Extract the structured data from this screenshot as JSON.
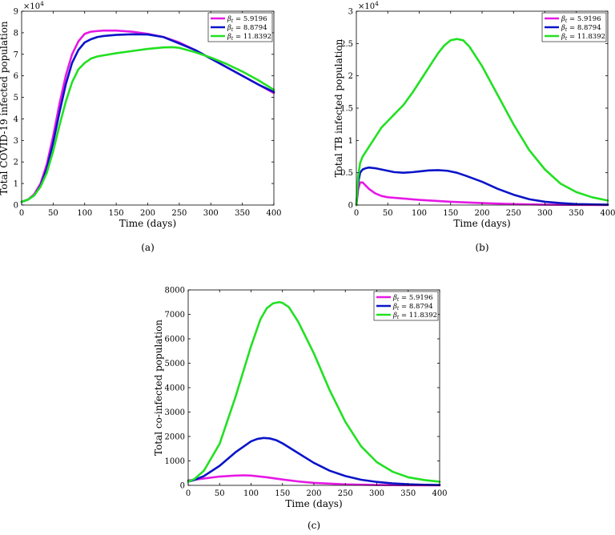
{
  "chart_data": [
    {
      "type": "line",
      "caption": "(a)",
      "xlabel": "Time (days)",
      "ylabel": "Total COVID-19 infected population",
      "exponent": "×10",
      "exponent_power": "4",
      "xlim": [
        0,
        400
      ],
      "ylim": [
        0,
        9
      ],
      "xticks": [
        0,
        50,
        100,
        150,
        200,
        250,
        300,
        350,
        400
      ],
      "yticks": [
        0,
        1,
        2,
        3,
        4,
        5,
        6,
        7,
        8,
        9
      ],
      "legend_position": "top-right",
      "series": [
        {
          "name": "β_t = 5.9196",
          "sym": "β",
          "sub": "t",
          "val": " = 5.9196",
          "color": "#e619e6",
          "x": [
            0,
            10,
            20,
            30,
            40,
            50,
            60,
            70,
            80,
            90,
            100,
            110,
            120,
            130,
            150,
            175,
            200,
            225,
            250,
            275,
            300,
            325,
            350,
            375,
            400
          ],
          "y": [
            0.15,
            0.25,
            0.5,
            1.0,
            1.9,
            3.2,
            4.7,
            6.0,
            7.0,
            7.6,
            7.95,
            8.05,
            8.08,
            8.1,
            8.1,
            8.05,
            7.95,
            7.8,
            7.55,
            7.2,
            6.8,
            6.4,
            6.0,
            5.6,
            5.2
          ]
        },
        {
          "name": "β_t = 8.8794",
          "sym": "β",
          "sub": "t",
          "val": " = 8.8794",
          "color": "#0a14c8",
          "x": [
            0,
            10,
            20,
            30,
            40,
            50,
            60,
            70,
            80,
            90,
            100,
            110,
            120,
            130,
            150,
            175,
            200,
            225,
            250,
            275,
            300,
            325,
            350,
            375,
            400
          ],
          "y": [
            0.15,
            0.25,
            0.45,
            0.9,
            1.7,
            2.9,
            4.3,
            5.6,
            6.6,
            7.2,
            7.55,
            7.7,
            7.8,
            7.85,
            7.9,
            7.93,
            7.92,
            7.8,
            7.5,
            7.2,
            6.8,
            6.4,
            6.0,
            5.6,
            5.25
          ]
        },
        {
          "name": "β_t = 11.8392",
          "sym": "β",
          "sub": "t",
          "val": " = 11.8392",
          "color": "#22e022",
          "x": [
            0,
            10,
            20,
            30,
            40,
            50,
            60,
            70,
            80,
            90,
            100,
            110,
            120,
            130,
            150,
            175,
            200,
            225,
            240,
            250,
            275,
            300,
            325,
            350,
            375,
            400
          ],
          "y": [
            0.15,
            0.25,
            0.45,
            0.85,
            1.5,
            2.5,
            3.7,
            4.8,
            5.7,
            6.3,
            6.6,
            6.8,
            6.9,
            6.95,
            7.05,
            7.15,
            7.25,
            7.32,
            7.33,
            7.3,
            7.1,
            6.85,
            6.55,
            6.2,
            5.8,
            5.35
          ]
        }
      ]
    },
    {
      "type": "line",
      "caption": "(b)",
      "xlabel": "Time (days)",
      "ylabel": "Total TB infected population",
      "exponent": "×10",
      "exponent_power": "4",
      "xlim": [
        0,
        400
      ],
      "ylim": [
        0,
        3
      ],
      "xticks": [
        0,
        50,
        100,
        150,
        200,
        250,
        300,
        350,
        400
      ],
      "yticks": [
        0,
        0.5,
        1,
        1.5,
        2,
        2.5,
        3
      ],
      "legend_position": "top-right",
      "series": [
        {
          "name": "β_t = 5.9196",
          "sym": "β",
          "sub": "t",
          "val": " = 5.9196",
          "color": "#e619e6",
          "x": [
            0,
            3,
            6,
            10,
            15,
            20,
            30,
            40,
            50,
            75,
            100,
            150,
            200,
            250,
            300,
            350,
            400
          ],
          "y": [
            0,
            0.25,
            0.35,
            0.35,
            0.3,
            0.25,
            0.18,
            0.14,
            0.12,
            0.1,
            0.08,
            0.05,
            0.03,
            0.015,
            0.005,
            0.002,
            0
          ]
        },
        {
          "name": "β_t = 8.8794",
          "sym": "β",
          "sub": "t",
          "val": " = 8.8794",
          "color": "#0a14c8",
          "x": [
            0,
            3,
            6,
            10,
            15,
            20,
            30,
            40,
            50,
            60,
            75,
            90,
            100,
            115,
            130,
            145,
            160,
            175,
            200,
            225,
            250,
            275,
            300,
            325,
            350,
            375,
            400
          ],
          "y": [
            0,
            0.35,
            0.5,
            0.55,
            0.57,
            0.58,
            0.57,
            0.55,
            0.53,
            0.51,
            0.5,
            0.51,
            0.52,
            0.535,
            0.54,
            0.53,
            0.5,
            0.45,
            0.36,
            0.25,
            0.16,
            0.09,
            0.05,
            0.03,
            0.015,
            0.01,
            0.005
          ]
        },
        {
          "name": "β_t = 11.8392",
          "sym": "β",
          "sub": "t",
          "val": " = 11.8392",
          "color": "#22e022",
          "x": [
            0,
            3,
            6,
            10,
            20,
            30,
            40,
            50,
            60,
            75,
            90,
            100,
            110,
            120,
            130,
            140,
            150,
            160,
            170,
            180,
            200,
            225,
            250,
            275,
            300,
            325,
            350,
            375,
            400
          ],
          "y": [
            0,
            0.45,
            0.65,
            0.75,
            0.9,
            1.05,
            1.2,
            1.3,
            1.4,
            1.55,
            1.75,
            1.9,
            2.05,
            2.2,
            2.35,
            2.47,
            2.55,
            2.57,
            2.55,
            2.45,
            2.15,
            1.7,
            1.25,
            0.85,
            0.55,
            0.33,
            0.2,
            0.12,
            0.07
          ]
        }
      ]
    },
    {
      "type": "line",
      "caption": "(c)",
      "xlabel": "Time (days)",
      "ylabel": "Total co-infected population",
      "xlim": [
        0,
        400
      ],
      "ylim": [
        0,
        8000
      ],
      "xticks": [
        0,
        50,
        100,
        150,
        200,
        250,
        300,
        350,
        400
      ],
      "yticks": [
        0,
        1000,
        2000,
        3000,
        4000,
        5000,
        6000,
        7000,
        8000
      ],
      "legend_position": "top-right",
      "series": [
        {
          "name": "β_t = 5.9196",
          "sym": "β",
          "sub": "t",
          "val": " = 5.9196",
          "color": "#e619e6",
          "x": [
            0,
            10,
            25,
            50,
            75,
            90,
            100,
            125,
            150,
            175,
            200,
            250,
            300,
            350,
            400
          ],
          "y": [
            200,
            230,
            280,
            360,
            400,
            410,
            400,
            330,
            240,
            160,
            100,
            40,
            15,
            5,
            2
          ]
        },
        {
          "name": "β_t = 8.8794",
          "sym": "β",
          "sub": "t",
          "val": " = 8.8794",
          "color": "#0a14c8",
          "x": [
            0,
            10,
            25,
            50,
            75,
            100,
            110,
            120,
            130,
            140,
            150,
            175,
            200,
            225,
            250,
            275,
            300,
            325,
            350,
            375,
            400
          ],
          "y": [
            150,
            220,
            380,
            800,
            1350,
            1800,
            1900,
            1940,
            1920,
            1850,
            1720,
            1320,
            920,
            600,
            380,
            230,
            140,
            80,
            45,
            25,
            15
          ]
        },
        {
          "name": "β_t = 11.8392",
          "sym": "β",
          "sub": "t",
          "val": " = 11.8392",
          "color": "#22e022",
          "x": [
            0,
            10,
            25,
            50,
            75,
            100,
            115,
            125,
            135,
            145,
            150,
            160,
            175,
            200,
            225,
            250,
            275,
            300,
            325,
            350,
            375,
            400
          ],
          "y": [
            150,
            260,
            600,
            1700,
            3600,
            5700,
            6800,
            7250,
            7450,
            7500,
            7470,
            7300,
            6700,
            5400,
            3900,
            2600,
            1600,
            950,
            560,
            330,
            220,
            150
          ]
        }
      ]
    }
  ]
}
